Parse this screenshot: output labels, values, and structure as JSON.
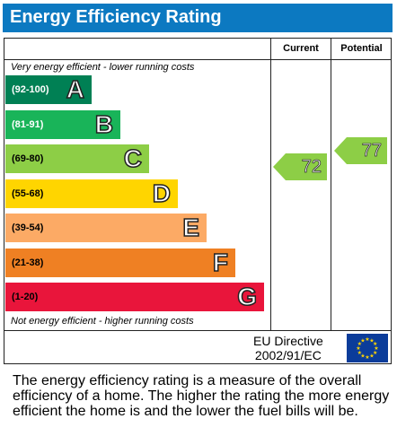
{
  "header": {
    "title": "Energy Efficiency Rating"
  },
  "columns": {
    "current": "Current",
    "potential": "Potential"
  },
  "notes": {
    "top": "Very energy efficient - lower running costs",
    "bottom": "Not energy efficient - higher running costs"
  },
  "chart_data": {
    "type": "bar",
    "title": "Energy Efficiency Rating",
    "bands": [
      {
        "range": "(92-100)",
        "letter": "A",
        "color": "#008054",
        "min": 92,
        "max": 100
      },
      {
        "range": "(81-91)",
        "letter": "B",
        "color": "#19b459",
        "min": 81,
        "max": 91
      },
      {
        "range": "(69-80)",
        "letter": "C",
        "color": "#8dce46",
        "min": 69,
        "max": 80
      },
      {
        "range": "(55-68)",
        "letter": "D",
        "color": "#ffd500",
        "min": 55,
        "max": 68
      },
      {
        "range": "(39-54)",
        "letter": "E",
        "color": "#fcaa65",
        "min": 39,
        "max": 54
      },
      {
        "range": "(21-38)",
        "letter": "F",
        "color": "#ef8023",
        "min": 21,
        "max": 38
      },
      {
        "range": "(1-20)",
        "letter": "G",
        "color": "#e9153b",
        "min": 1,
        "max": 20
      }
    ],
    "current": {
      "value": 72,
      "band": "C",
      "color": "#8dce46"
    },
    "potential": {
      "value": 77,
      "band": "C",
      "color": "#8dce46"
    }
  },
  "footer": {
    "directive_line1": "EU Directive",
    "directive_line2": "2002/91/EC",
    "flag_icon": "eu-flag-icon"
  },
  "description": "The energy efficiency rating is a measure of the overall efficiency of a home. The higher the rating the more energy efficient the home is and the lower the fuel bills will be."
}
